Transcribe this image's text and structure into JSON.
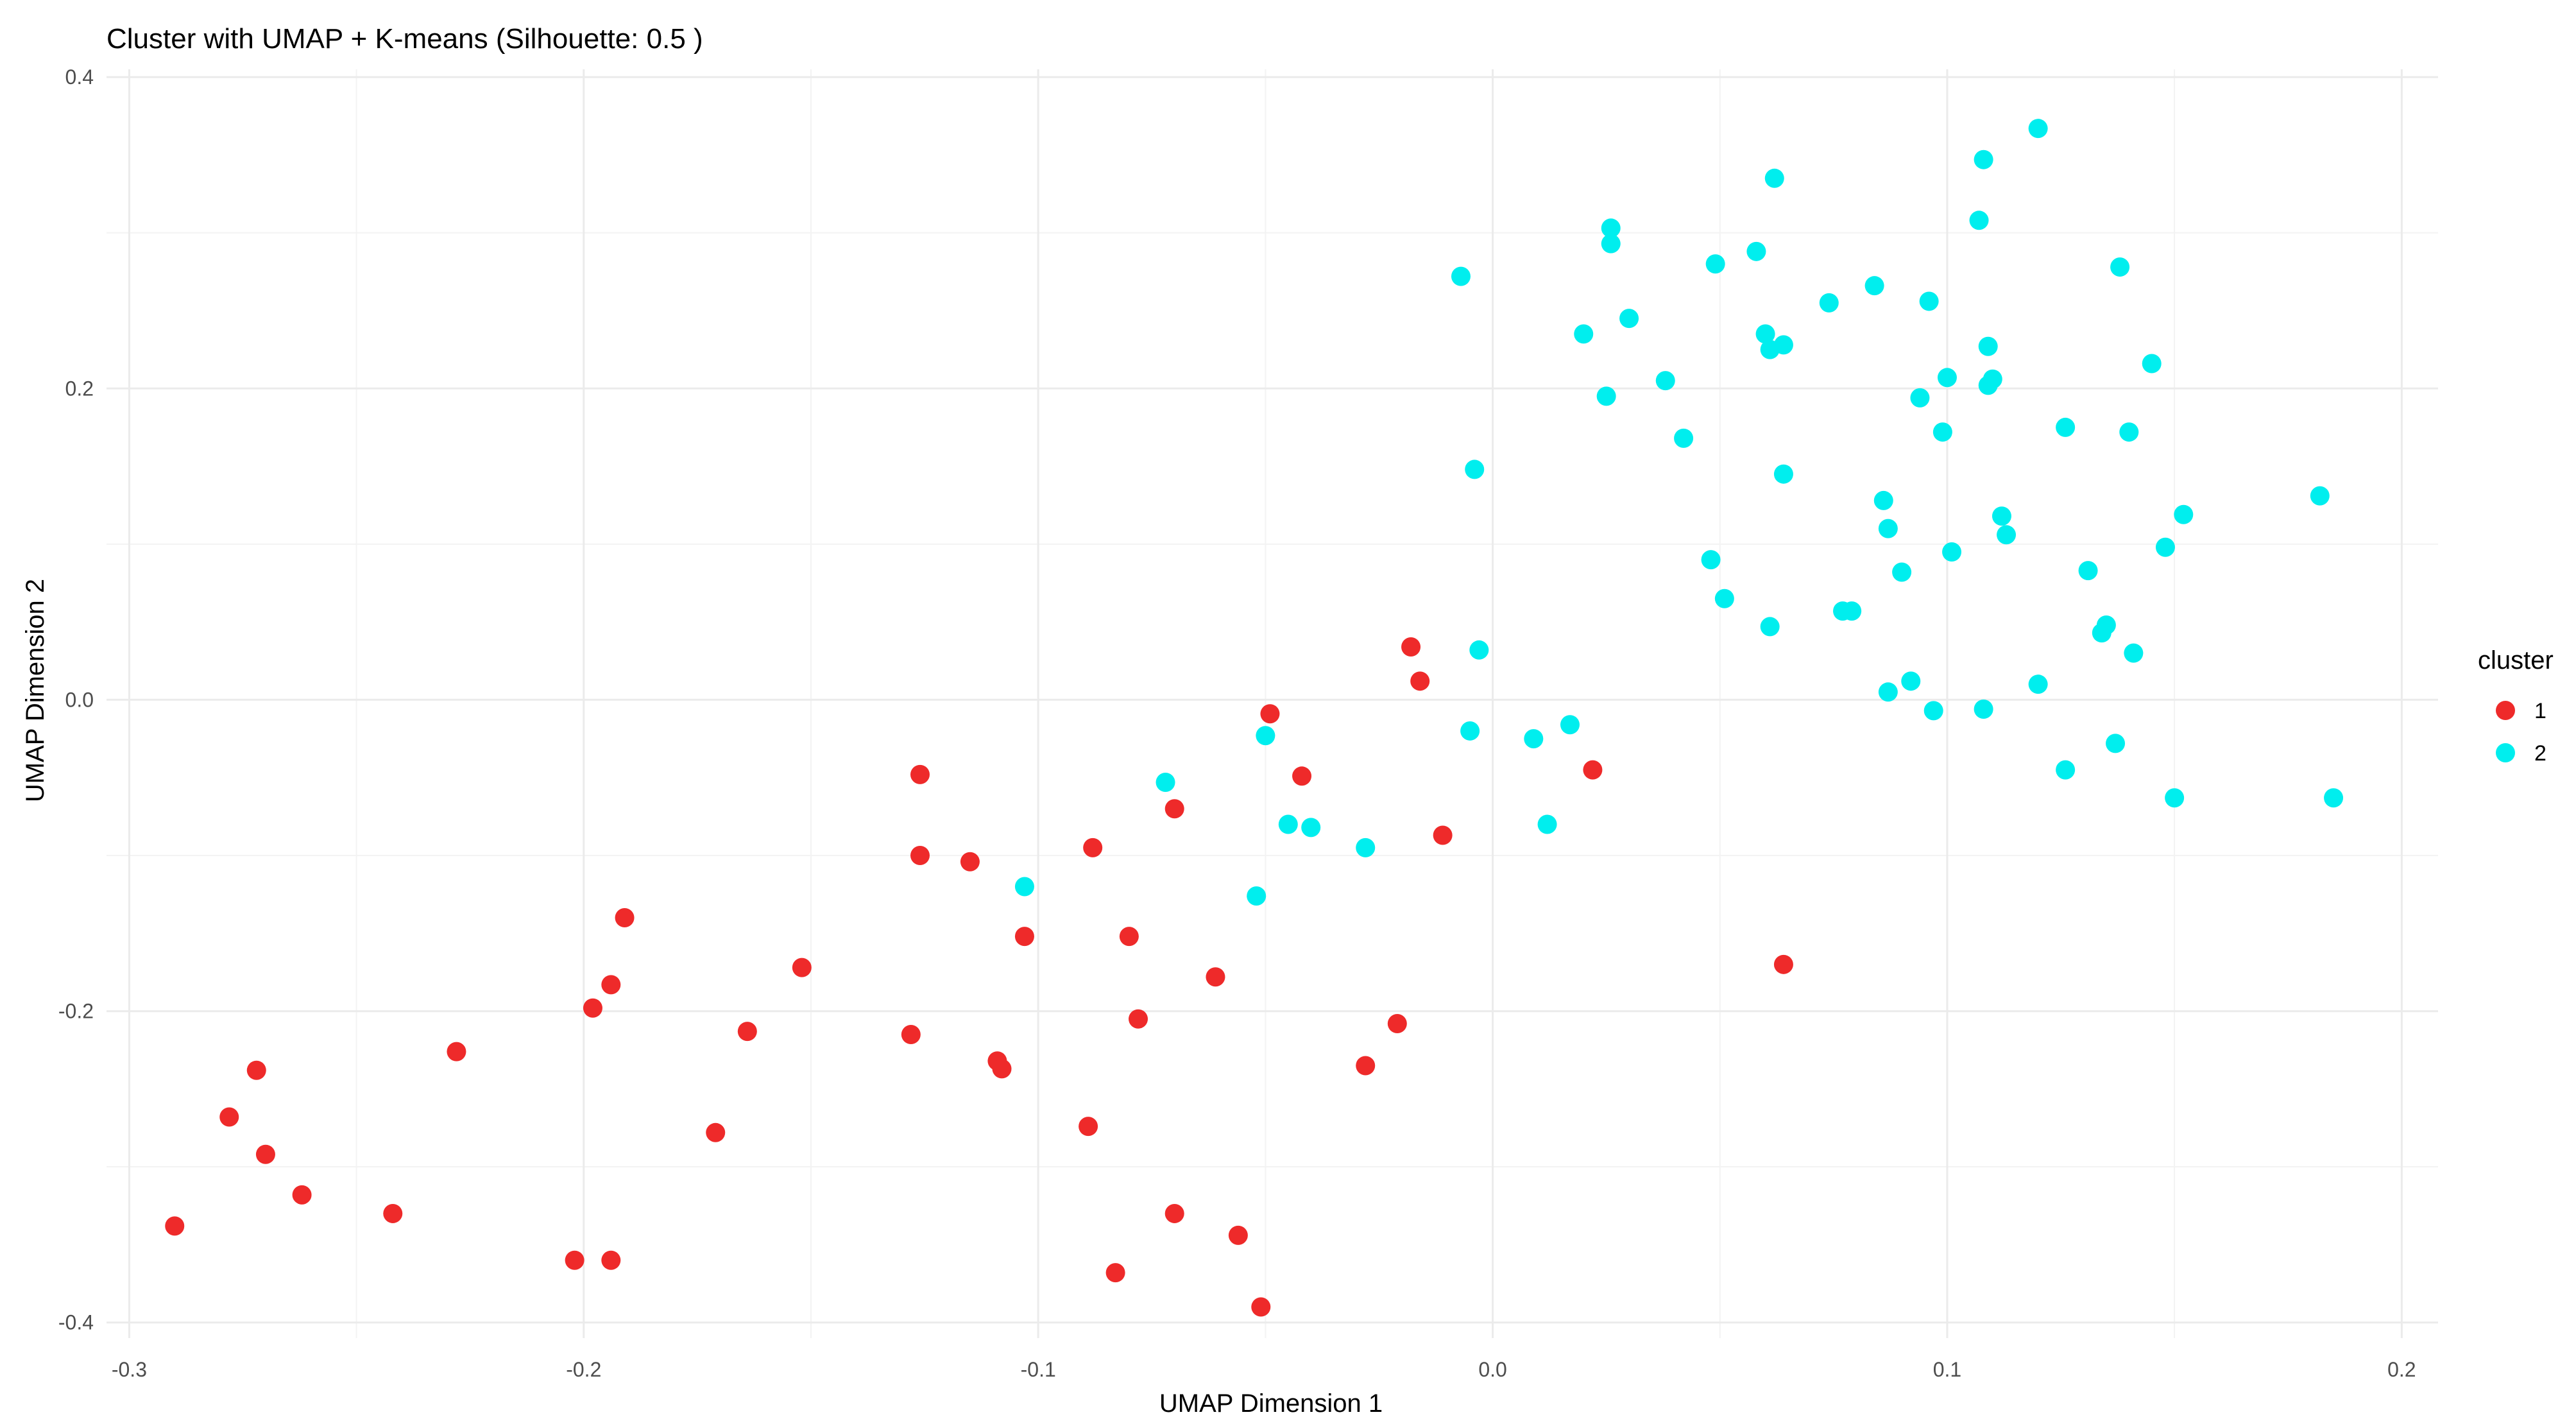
{
  "chart_data": {
    "type": "scatter",
    "title": "Cluster with UMAP + K-means (Silhouette: 0.5 )",
    "xlabel": "UMAP Dimension 1",
    "ylabel": "UMAP Dimension 2",
    "xlim": [
      -0.305,
      0.208
    ],
    "ylim": [
      -0.41,
      0.405
    ],
    "x_ticks": [
      -0.3,
      -0.2,
      -0.1,
      0.0,
      0.1,
      0.2
    ],
    "x_tick_labels": [
      "-0.3",
      "-0.2",
      "-0.1",
      "0.0",
      "0.1",
      "0.2"
    ],
    "y_ticks": [
      -0.4,
      -0.2,
      0.0,
      0.2,
      0.4
    ],
    "y_tick_labels": [
      "-0.4",
      "-0.2",
      "0.0",
      "0.2",
      "0.4"
    ],
    "grid": true,
    "legend": {
      "title": "cluster",
      "position": "right"
    },
    "series": [
      {
        "name": "1",
        "color": "#ee2a2a",
        "points": [
          [
            -0.29,
            -0.338
          ],
          [
            -0.278,
            -0.268
          ],
          [
            -0.272,
            -0.238
          ],
          [
            -0.27,
            -0.292
          ],
          [
            -0.262,
            -0.318
          ],
          [
            -0.242,
            -0.33
          ],
          [
            -0.228,
            -0.226
          ],
          [
            -0.202,
            -0.36
          ],
          [
            -0.198,
            -0.198
          ],
          [
            -0.194,
            -0.183
          ],
          [
            -0.194,
            -0.36
          ],
          [
            -0.191,
            -0.14
          ],
          [
            -0.171,
            -0.278
          ],
          [
            -0.164,
            -0.213
          ],
          [
            -0.152,
            -0.172
          ],
          [
            -0.128,
            -0.215
          ],
          [
            -0.126,
            -0.048
          ],
          [
            -0.126,
            -0.1
          ],
          [
            -0.115,
            -0.104
          ],
          [
            -0.109,
            -0.232
          ],
          [
            -0.108,
            -0.237
          ],
          [
            -0.103,
            -0.152
          ],
          [
            -0.089,
            -0.274
          ],
          [
            -0.088,
            -0.095
          ],
          [
            -0.083,
            -0.368
          ],
          [
            -0.08,
            -0.152
          ],
          [
            -0.078,
            -0.205
          ],
          [
            -0.07,
            -0.07
          ],
          [
            -0.07,
            -0.33
          ],
          [
            -0.061,
            -0.178
          ],
          [
            -0.056,
            -0.344
          ],
          [
            -0.051,
            -0.39
          ],
          [
            -0.049,
            -0.009
          ],
          [
            -0.042,
            -0.049
          ],
          [
            -0.028,
            -0.235
          ],
          [
            -0.021,
            -0.208
          ],
          [
            -0.018,
            0.034
          ],
          [
            -0.016,
            0.012
          ],
          [
            -0.011,
            -0.087
          ],
          [
            0.022,
            -0.045
          ],
          [
            0.064,
            -0.17
          ]
        ]
      },
      {
        "name": "2",
        "color": "#00eeee",
        "points": [
          [
            -0.103,
            -0.12
          ],
          [
            -0.072,
            -0.053
          ],
          [
            -0.052,
            -0.126
          ],
          [
            -0.05,
            -0.023
          ],
          [
            -0.045,
            -0.08
          ],
          [
            -0.04,
            -0.082
          ],
          [
            -0.028,
            -0.095
          ],
          [
            -0.007,
            0.272
          ],
          [
            -0.005,
            -0.02
          ],
          [
            -0.004,
            0.148
          ],
          [
            -0.003,
            0.032
          ],
          [
            0.009,
            -0.025
          ],
          [
            0.012,
            -0.08
          ],
          [
            0.017,
            -0.016
          ],
          [
            0.02,
            0.235
          ],
          [
            0.025,
            0.195
          ],
          [
            0.026,
            0.303
          ],
          [
            0.026,
            0.293
          ],
          [
            0.03,
            0.245
          ],
          [
            0.038,
            0.205
          ],
          [
            0.042,
            0.168
          ],
          [
            0.048,
            0.09
          ],
          [
            0.049,
            0.28
          ],
          [
            0.051,
            0.065
          ],
          [
            0.058,
            0.288
          ],
          [
            0.06,
            0.235
          ],
          [
            0.061,
            0.225
          ],
          [
            0.061,
            0.047
          ],
          [
            0.062,
            0.335
          ],
          [
            0.064,
            0.145
          ],
          [
            0.064,
            0.228
          ],
          [
            0.074,
            0.255
          ],
          [
            0.077,
            0.057
          ],
          [
            0.079,
            0.057
          ],
          [
            0.084,
            0.266
          ],
          [
            0.086,
            0.128
          ],
          [
            0.087,
            0.11
          ],
          [
            0.087,
            0.005
          ],
          [
            0.09,
            0.082
          ],
          [
            0.092,
            0.012
          ],
          [
            0.094,
            0.194
          ],
          [
            0.096,
            0.256
          ],
          [
            0.097,
            -0.007
          ],
          [
            0.099,
            0.172
          ],
          [
            0.1,
            0.207
          ],
          [
            0.101,
            0.095
          ],
          [
            0.107,
            0.308
          ],
          [
            0.108,
            0.347
          ],
          [
            0.108,
            -0.006
          ],
          [
            0.109,
            0.202
          ],
          [
            0.109,
            0.227
          ],
          [
            0.11,
            0.206
          ],
          [
            0.112,
            0.118
          ],
          [
            0.113,
            0.106
          ],
          [
            0.12,
            0.367
          ],
          [
            0.12,
            0.01
          ],
          [
            0.126,
            -0.045
          ],
          [
            0.126,
            0.175
          ],
          [
            0.131,
            0.083
          ],
          [
            0.134,
            0.043
          ],
          [
            0.135,
            0.048
          ],
          [
            0.137,
            -0.028
          ],
          [
            0.138,
            0.278
          ],
          [
            0.14,
            0.172
          ],
          [
            0.141,
            0.03
          ],
          [
            0.145,
            0.216
          ],
          [
            0.148,
            0.098
          ],
          [
            0.15,
            -0.063
          ],
          [
            0.152,
            0.119
          ],
          [
            0.182,
            0.131
          ],
          [
            0.185,
            -0.063
          ]
        ]
      }
    ]
  }
}
